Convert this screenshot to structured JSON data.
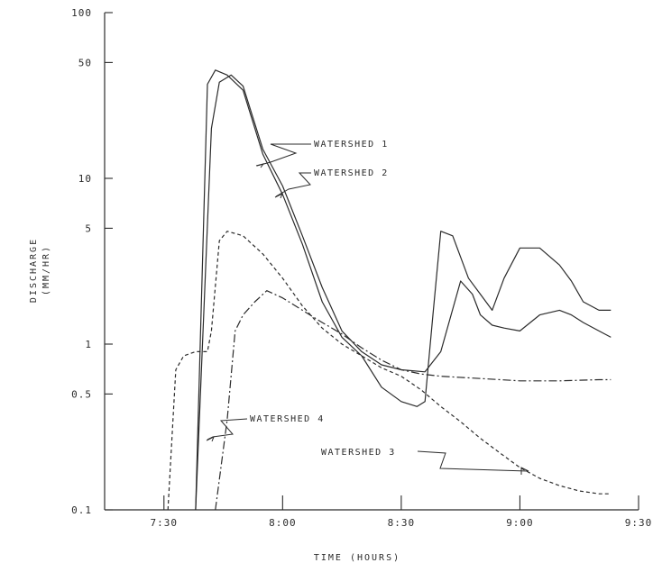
{
  "chart_data": {
    "type": "line",
    "title": "",
    "xlabel": "TIME (HOURS)",
    "ylabel": "DISCHARGE",
    "ylabel_units": "(MM/HR)",
    "y_scale": "log",
    "ylim": [
      0.1,
      100
    ],
    "xlim": [
      "7:15",
      "9:30"
    ],
    "x_ticks": [
      "7:30",
      "8:00",
      "8:30",
      "9:00",
      "9:30"
    ],
    "y_ticks": [
      "0.1",
      "0.5",
      "1",
      "5",
      "10",
      "50",
      "100"
    ],
    "y_tick_values": [
      0.1,
      0.5,
      1,
      5,
      10,
      50,
      100
    ],
    "series": [
      {
        "name": "WATERSHED 1",
        "style": "solid",
        "x": [
          "7:38",
          "7:41",
          "7:43",
          "7:46",
          "7:50",
          "7:55",
          "8:00",
          "8:05",
          "8:10",
          "8:15",
          "8:20",
          "8:25",
          "8:30",
          "8:34",
          "8:36",
          "8:38",
          "8:40",
          "8:43",
          "8:47",
          "8:50",
          "8:53",
          "8:56",
          "9:00",
          "9:05",
          "9:10",
          "9:13",
          "9:16",
          "9:20",
          "9:23"
        ],
        "values": [
          0.1,
          37,
          45,
          42,
          34,
          14,
          8,
          4,
          1.8,
          1.1,
          0.85,
          0.55,
          0.45,
          0.42,
          0.45,
          1.5,
          4.8,
          4.5,
          2.5,
          2.0,
          1.6,
          2.5,
          3.8,
          3.8,
          3.0,
          2.4,
          1.8,
          1.6,
          1.6
        ]
      },
      {
        "name": "WATERSHED 2",
        "style": "solid",
        "x": [
          "7:38",
          "7:42",
          "7:44",
          "7:47",
          "7:50",
          "7:55",
          "8:00",
          "8:05",
          "8:10",
          "8:15",
          "8:20",
          "8:25",
          "8:30",
          "8:36",
          "8:40",
          "8:45",
          "8:48",
          "8:50",
          "8:53",
          "8:56",
          "9:00",
          "9:05",
          "9:10",
          "9:13",
          "9:16",
          "9:20",
          "9:23"
        ],
        "values": [
          0.1,
          20,
          38,
          42,
          36,
          15,
          9,
          4.5,
          2.2,
          1.2,
          0.9,
          0.75,
          0.7,
          0.68,
          0.9,
          2.4,
          2.0,
          1.5,
          1.3,
          1.25,
          1.2,
          1.5,
          1.6,
          1.5,
          1.35,
          1.2,
          1.1
        ]
      },
      {
        "name": "WATERSHED 3",
        "style": "dashed",
        "x": [
          "7:31",
          "7:33",
          "7:35",
          "7:38",
          "7:41",
          "7:42",
          "7:44",
          "7:46",
          "7:50",
          "7:55",
          "8:00",
          "8:05",
          "8:10",
          "8:15",
          "8:20",
          "8:25",
          "8:30",
          "8:35",
          "8:40",
          "8:45",
          "8:50",
          "8:55",
          "9:00",
          "9:05",
          "9:10",
          "9:15",
          "9:20",
          "9:23"
        ],
        "values": [
          0.1,
          0.7,
          0.85,
          0.9,
          0.9,
          1.2,
          4.2,
          4.8,
          4.5,
          3.5,
          2.5,
          1.7,
          1.25,
          1.0,
          0.85,
          0.72,
          0.64,
          0.53,
          0.42,
          0.34,
          0.27,
          0.22,
          0.18,
          0.155,
          0.14,
          0.13,
          0.125,
          0.125
        ]
      },
      {
        "name": "WATERSHED 4",
        "style": "dash-dot",
        "x": [
          "7:43",
          "7:46",
          "7:48",
          "7:50",
          "7:53",
          "7:56",
          "8:00",
          "8:05",
          "8:10",
          "8:15",
          "8:20",
          "8:25",
          "8:30",
          "8:35",
          "8:40",
          "8:50",
          "9:00",
          "9:10",
          "9:20",
          "9:23"
        ],
        "values": [
          0.1,
          0.35,
          1.2,
          1.5,
          1.8,
          2.1,
          1.9,
          1.6,
          1.35,
          1.15,
          0.95,
          0.8,
          0.7,
          0.66,
          0.64,
          0.62,
          0.6,
          0.6,
          0.61,
          0.61
        ]
      }
    ],
    "annotations": [
      "WATERSHED 1",
      "WATERSHED 2",
      "WATERSHED 4",
      "WATERSHED 3"
    ],
    "grid": false,
    "legend": "none (inline labels with leader arrows)"
  }
}
